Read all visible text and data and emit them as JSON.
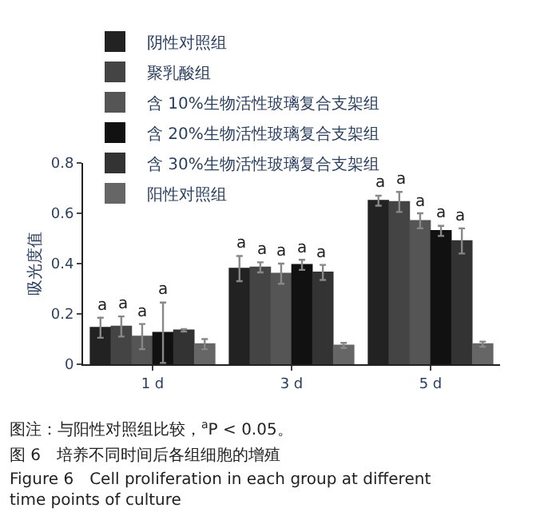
{
  "chart_data": {
    "type": "bar",
    "categories": [
      "1 d",
      "3 d",
      "5 d"
    ],
    "ylabel": "吸光度值",
    "ylim": [
      0,
      0.8
    ],
    "yticks": [
      {
        "value": 0,
        "label": "0"
      },
      0.2,
      0.4,
      0.6,
      0.8
    ],
    "legend": "top left",
    "series": [
      {
        "name": "阴性对照组",
        "color": "#222222",
        "values": [
          0.145,
          0.38,
          0.65
        ],
        "errors": [
          0.04,
          0.05,
          0.02
        ],
        "value_labels": [
          "a",
          "a",
          "a"
        ]
      },
      {
        "name": "聚乳酸组",
        "color": "#444444",
        "values": [
          0.15,
          0.385,
          0.645
        ],
        "errors": [
          0.04,
          0.02,
          0.04
        ],
        "value_labels": [
          "a",
          "a",
          "a"
        ]
      },
      {
        "name": "含 10%生物活性玻璃复合支架组",
        "color": "#555555",
        "values": [
          0.11,
          0.36,
          0.57
        ],
        "errors": [
          0.05,
          0.04,
          0.03
        ],
        "value_labels": [
          "a",
          "a",
          "a"
        ]
      },
      {
        "name": "含 20%生物活性玻璃复合支架组",
        "color": "#111111",
        "values": [
          0.125,
          0.395,
          0.53
        ],
        "errors": [
          0.12,
          0.02,
          0.02
        ],
        "value_labels": [
          "a",
          "a",
          "a"
        ]
      },
      {
        "name": "含 30%生物活性玻璃复合支架组",
        "color": "#333333",
        "values": [
          0.135,
          0.365,
          0.49
        ],
        "errors": [
          0.005,
          0.03,
          0.05
        ],
        "value_labels": [
          null,
          "a",
          "a"
        ]
      },
      {
        "name": "阳性对照组",
        "color": "#666666",
        "values": [
          0.08,
          0.075,
          0.08
        ],
        "errors": [
          0.02,
          0.01,
          0.01
        ],
        "value_labels": [
          null,
          null,
          null
        ]
      }
    ],
    "annotations": [
      "图注：与阳性对照组比较，$^{a}$P < 0.05。",
      "图 6　培养不同时间后各组细胞的增殖",
      "Figure 6　Cell proliferation in each group at different time points of culture"
    ]
  }
}
